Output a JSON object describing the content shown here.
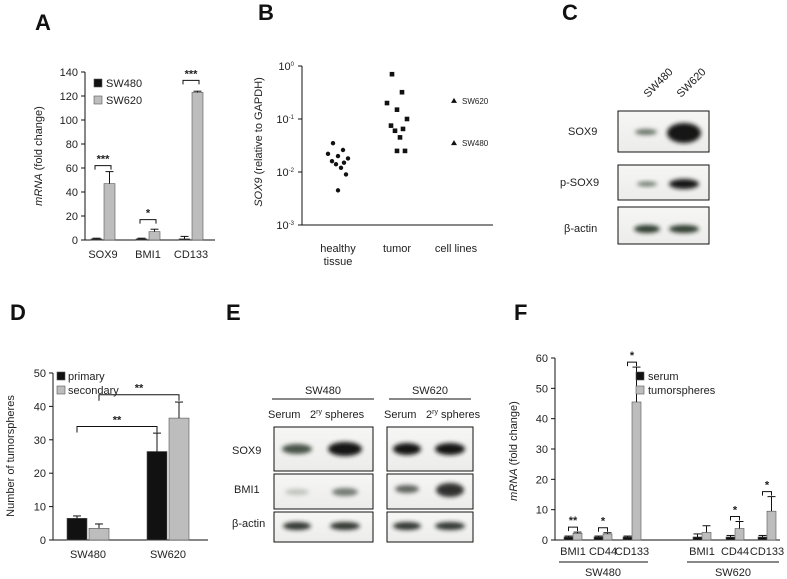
{
  "panels": {
    "A": "A",
    "B": "B",
    "C": "C",
    "D": "D",
    "E": "E",
    "F": "F"
  },
  "chart_data": [
    {
      "panel": "A",
      "type": "bar",
      "categories": [
        "SOX9",
        "BMI1",
        "CD133"
      ],
      "series": [
        {
          "name": "SW480",
          "values": [
            1,
            1,
            1
          ],
          "errors": [
            0.5,
            0.5,
            2
          ],
          "color": "#111111"
        },
        {
          "name": "SW620",
          "values": [
            47,
            7,
            123
          ],
          "errors": [
            10,
            2,
            1
          ],
          "color": "#bdbdbd"
        }
      ],
      "ylabel_italic": "mRNA",
      "ylabel_rest": " (fold change)",
      "ylim": [
        0,
        140
      ],
      "yticks": [
        "0",
        "20",
        "40",
        "60",
        "80",
        "100",
        "120",
        "140"
      ],
      "significance": [
        "***",
        "*",
        "***"
      ],
      "legend_position": "top-left"
    },
    {
      "panel": "B",
      "type": "scatter",
      "categories": [
        "healthy tissue",
        "tumor",
        "cell lines"
      ],
      "category_labels": [
        [
          "healthy",
          "tissue"
        ],
        [
          "tumor"
        ],
        [
          "cell lines"
        ]
      ],
      "scale": "log",
      "ylim": [
        0.001,
        1
      ],
      "yticks": [
        {
          "base": "10",
          "exp": "0"
        },
        {
          "base": "10",
          "exp": "-1"
        },
        {
          "base": "10",
          "exp": "-2"
        },
        {
          "base": "10",
          "exp": "-3"
        }
      ],
      "ylabel_italic": "SOX9",
      "ylabel_rest": " (relative to GAPDH)",
      "groups": [
        {
          "name": "healthy tissue",
          "marker": "circle",
          "values": [
            0.035,
            0.026,
            0.022,
            0.02,
            0.018,
            0.016,
            0.015,
            0.014,
            0.012,
            0.009,
            0.0045
          ]
        },
        {
          "name": "tumor",
          "marker": "square",
          "values": [
            0.7,
            0.32,
            0.2,
            0.15,
            0.1,
            0.075,
            0.065,
            0.06,
            0.045,
            0.025,
            0.025
          ]
        },
        {
          "name": "cell lines",
          "marker": "triangle",
          "values": [
            0.22,
            0.035
          ],
          "point_labels": [
            "SW620",
            "SW480"
          ]
        }
      ]
    },
    {
      "panel": "D",
      "type": "bar",
      "categories": [
        "SW480",
        "SW620"
      ],
      "series": [
        {
          "name": "primary",
          "values": [
            6.5,
            26.5
          ],
          "errors": [
            0.7,
            5.5
          ],
          "color": "#111111"
        },
        {
          "name": "secondary",
          "values": [
            3.5,
            36.5
          ],
          "errors": [
            1.3,
            4.8
          ],
          "color": "#bdbdbd"
        }
      ],
      "ylabel": "Number of tumorspheres",
      "ylim": [
        0,
        50
      ],
      "yticks": [
        "0",
        "10",
        "20",
        "30",
        "40",
        "50"
      ],
      "significance": [
        "**",
        "**"
      ],
      "legend_position": "top-left"
    },
    {
      "panel": "F",
      "type": "bar",
      "categories": [
        "BMI1",
        "CD44",
        "CD133",
        "BMI1",
        "CD44",
        "CD133"
      ],
      "groups": [
        "SW480",
        "SW620"
      ],
      "series": [
        {
          "name": "serum",
          "values": [
            1,
            1,
            1,
            1,
            1,
            1
          ],
          "errors": [
            0.3,
            0.3,
            0.3,
            1,
            0.5,
            0.5
          ],
          "color": "#111111"
        },
        {
          "name": "tumorspheres",
          "values": [
            2.2,
            2,
            45.5,
            2.5,
            3.8,
            9.5
          ],
          "errors": [
            0.4,
            0.4,
            11.5,
            2.2,
            2.3,
            4.8
          ],
          "color": "#bdbdbd"
        }
      ],
      "ylabel_italic": "mRNA",
      "ylabel_rest": " (fold change)",
      "ylim": [
        0,
        60
      ],
      "yticks": [
        "0",
        "10",
        "20",
        "30",
        "40",
        "50",
        "60"
      ],
      "significance": [
        "**",
        "*",
        "*",
        "*",
        "*"
      ],
      "legend_position": "top-left"
    }
  ],
  "blots": {
    "C": {
      "columns": [
        "SW480",
        "SW620"
      ],
      "rows": [
        "SOX9",
        "p-SOX9",
        "β-actin"
      ]
    },
    "E": {
      "groups": [
        "SW480",
        "SW620"
      ],
      "columns": [
        "Serum",
        "2",
        "ry",
        " spheres"
      ],
      "rows": [
        "SOX9",
        "BMI1",
        "β-actin"
      ]
    }
  }
}
